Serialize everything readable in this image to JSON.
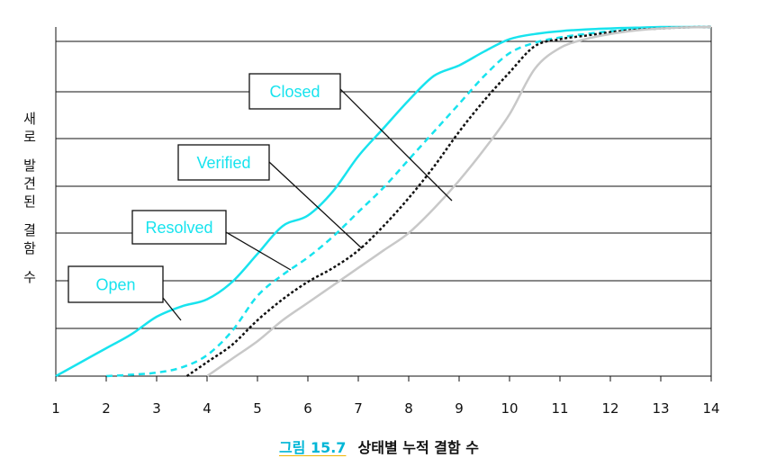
{
  "chart_data": {
    "type": "line",
    "ylabel": "새로 발견된 결함 수",
    "ylabel_chars": [
      "새",
      "로",
      "",
      "발",
      "견",
      "된",
      "",
      "결",
      "함",
      "",
      "수"
    ],
    "xlim": [
      1,
      14
    ],
    "ylim": [
      0,
      100
    ],
    "x_ticks": [
      1,
      2,
      3,
      4,
      5,
      6,
      7,
      8,
      9,
      10,
      11,
      12,
      13,
      14
    ],
    "grid": "horizontal lines",
    "series": [
      {
        "name": "Open",
        "color": "#18e3ee",
        "dash": "solid",
        "x": [
          1,
          1.5,
          2,
          2.5,
          3,
          3.5,
          4,
          4.5,
          5,
          5.5,
          6,
          6.5,
          7,
          7.5,
          8,
          8.5,
          9,
          9.5,
          10,
          10.5,
          11,
          11.5,
          12,
          12.5,
          13,
          13.5,
          14
        ],
        "y": [
          0,
          4,
          8,
          12,
          17,
          20,
          22,
          27,
          35,
          43,
          46,
          53,
          63,
          71,
          79,
          86,
          89,
          93,
          96.5,
          98,
          98.8,
          99.3,
          99.6,
          99.8,
          100,
          100,
          100
        ]
      },
      {
        "name": "Resolved",
        "color": "#18e3ee",
        "dash": "dashed",
        "x": [
          2,
          2.5,
          3,
          3.5,
          4,
          4.5,
          5,
          5.5,
          6,
          6.5,
          7,
          7.5,
          8,
          8.5,
          9,
          9.5,
          10,
          10.5,
          11,
          11.5,
          12,
          12.5,
          13,
          13.5,
          14
        ],
        "y": [
          0,
          0.4,
          1,
          2.5,
          6,
          13,
          23,
          29,
          34,
          40,
          47,
          54,
          62,
          70,
          78,
          86,
          92.5,
          95.5,
          97,
          98,
          98.8,
          99.4,
          99.7,
          99.9,
          100
        ]
      },
      {
        "name": "Verified",
        "color": "#111111",
        "dash": "dotted",
        "x": [
          3.6,
          4,
          4.5,
          5,
          5.5,
          6,
          6.5,
          7,
          7.5,
          8,
          8.5,
          9,
          9.5,
          10,
          10.5,
          11,
          11.5,
          12,
          12.5,
          13,
          13.5,
          14
        ],
        "y": [
          0,
          4,
          9,
          16,
          22,
          27,
          31,
          36,
          43,
          51,
          60,
          70,
          79,
          87,
          94.5,
          96.5,
          97.5,
          98.5,
          99.2,
          99.6,
          99.9,
          100
        ]
      },
      {
        "name": "Closed",
        "color": "#c8c8c8",
        "dash": "solid",
        "x": [
          4,
          4.5,
          5,
          5.5,
          6,
          6.5,
          7,
          7.5,
          8,
          8.5,
          9,
          9.5,
          10,
          10.5,
          11,
          11.5,
          12,
          12.5,
          13,
          13.5,
          14
        ],
        "y": [
          0,
          5,
          10,
          16,
          21,
          26,
          31,
          36,
          41,
          48,
          56,
          65,
          75,
          88,
          94,
          96.5,
          98,
          99,
          99.6,
          99.9,
          100
        ]
      }
    ],
    "annotations": [
      "Closed",
      "Verified",
      "Resolved",
      "Open"
    ]
  },
  "caption": {
    "figure": "그림 15.7",
    "title": "상태별 누적 결함 수"
  }
}
